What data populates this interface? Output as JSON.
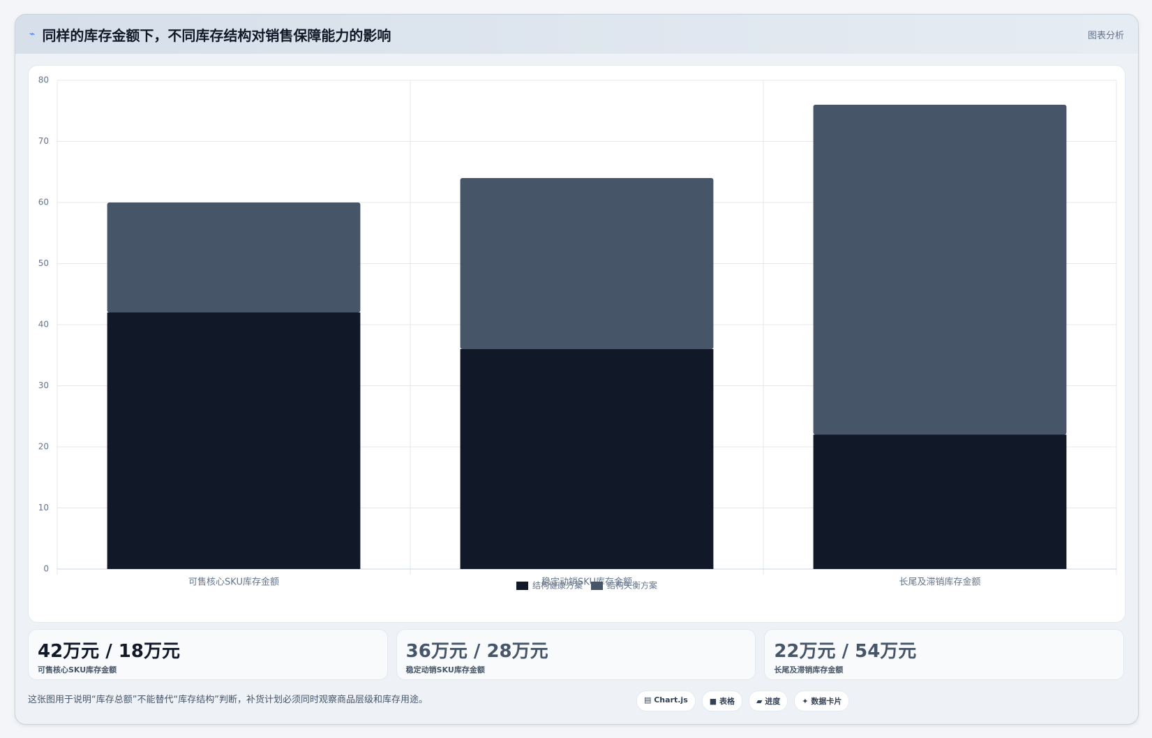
{
  "header": {
    "title": "同样的库存金额下，不同库存结构对销售保障能力的影响",
    "badge": "图表分析"
  },
  "chart_data": {
    "type": "stacked_bar",
    "categories": [
      "可售核心SKU库存金额",
      "稳定动销SKU库存金额",
      "长尾及滞销库存金额"
    ],
    "series": [
      {
        "name": "结构健康方案",
        "color": "#111827",
        "values": [
          42,
          36,
          22
        ]
      },
      {
        "name": "结构失衡方案",
        "color": "#475569",
        "values": [
          18,
          28,
          54
        ]
      }
    ],
    "ylim": [
      0,
      80
    ],
    "yticks": [
      0,
      10,
      20,
      30,
      40,
      50,
      60,
      70,
      80
    ],
    "grid": true,
    "legend": "bottom"
  },
  "cards": [
    {
      "value": "42万元 / 18万元",
      "label": "可售核心SKU库存金额"
    },
    {
      "value": "36万元 / 28万元",
      "label": "稳定动销SKU库存金额"
    },
    {
      "value": "22万元 / 54万元",
      "label": "长尾及滞销库存金额"
    }
  ],
  "footer": {
    "note": "这张图用于说明“库存总额”不能替代“库存结构”判断，补货计划必须同时观察商品层级和库存用途。",
    "buttons": [
      "Chart.js",
      "表格",
      "进度",
      "数据卡片"
    ]
  }
}
